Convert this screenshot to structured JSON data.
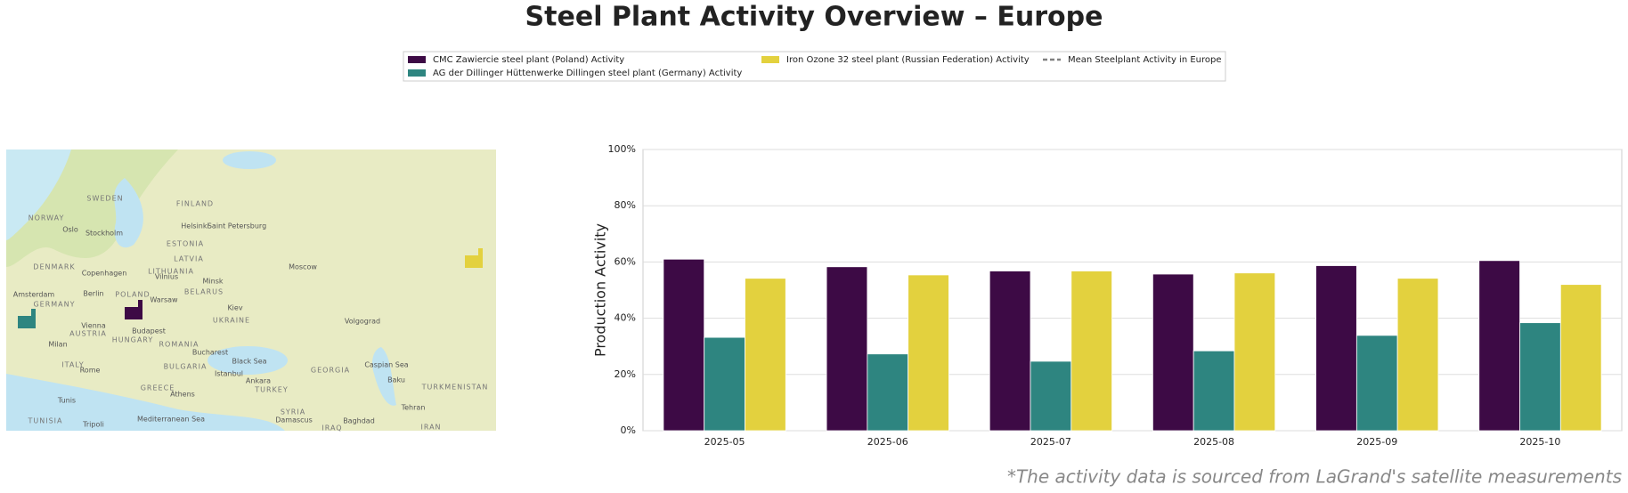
{
  "chart_data": {
    "type": "bar",
    "title": "Steel Plant Activity Overview – Europe",
    "ylabel": "Production Activity",
    "footnote": "*The activity data is sourced from LaGrand's satellite measurements",
    "categories": [
      "2025-05",
      "2025-06",
      "2025-07",
      "2025-08",
      "2025-09",
      "2025-10"
    ],
    "series": [
      {
        "name": "CMC Zawiercie steel plant (Poland) Activity",
        "color": "#3d0a45",
        "values": [
          61,
          58.3,
          56.8,
          55.7,
          58.7,
          60.5
        ]
      },
      {
        "name": "AG der Dillinger Hüttenwerke Dillingen steel plant (Germany) Activity",
        "color": "#2e8580",
        "values": [
          33.2,
          27.3,
          24.7,
          28.4,
          33.9,
          38.4
        ]
      },
      {
        "name": "Iron Ozone 32 steel plant (Russian Federation) Activity",
        "color": "#e3d13e",
        "values": [
          54.2,
          55.4,
          56.8,
          56.1,
          54.2,
          52
        ]
      }
    ],
    "mean_line": {
      "name": "Mean Steelplant Activity in Europe",
      "color": "#808080"
    },
    "ylim": [
      0,
      100
    ],
    "yticks": [
      {
        "value": 0,
        "label": "0%"
      },
      {
        "value": 20,
        "label": "20%"
      },
      {
        "value": 40,
        "label": "40%"
      },
      {
        "value": 60,
        "label": "60%"
      },
      {
        "value": 80,
        "label": "80%"
      },
      {
        "value": 100,
        "label": "100%"
      }
    ],
    "grid": true,
    "map": {
      "labels": [
        "SWEDEN",
        "FINLAND",
        "NORWAY",
        "Oslo",
        "Stockholm",
        "Helsinki",
        "Saint Petersburg",
        "ESTONIA",
        "LATVIA",
        "DENMARK",
        "Copenhagen",
        "LITHUANIA",
        "Vilnius",
        "Moscow",
        "Minsk",
        "BELARUS",
        "Amsterdam",
        "Berlin",
        "POLAND",
        "Warsaw",
        "Kiev",
        "Volgograd",
        "UKRAINE",
        "GERMANY",
        "Vienna",
        "AUSTRIA",
        "Budapest",
        "HUNGARY",
        "Milan",
        "ROMANIA",
        "Bucharest",
        "BULGARIA",
        "ITALY",
        "Rome",
        "Istanbul",
        "Black Sea",
        "Ankara",
        "TURKEY",
        "Caspian Sea",
        "Baku",
        "GEORGIA",
        "GREECE",
        "Athens",
        "Tunis",
        "SYRIA",
        "Tehran",
        "TURKMENISTAN",
        "Damascus",
        "Baghdad",
        "IRAQ",
        "IRAN",
        "Mediterranean Sea",
        "TUNISIA",
        "Tripoli"
      ]
    }
  }
}
